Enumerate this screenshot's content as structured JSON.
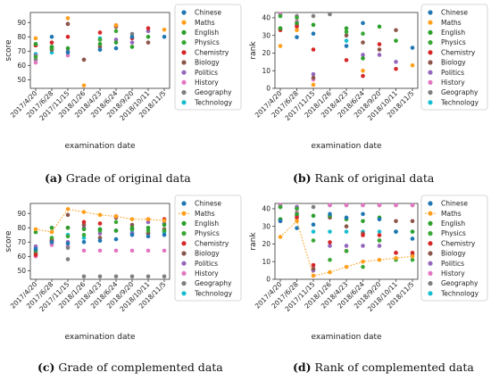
{
  "colors": {
    "Chinese": "#1f77b4",
    "Maths": "#ff9f1c",
    "English": "#2ca02c",
    "Physics": "#3aa836",
    "Chemistry": "#d62728",
    "Biology": "#8c564b",
    "Politics": "#9467bd",
    "History": "#e377c2",
    "Geography": "#7f7f7f",
    "Technology": "#17becf"
  },
  "legend_order": [
    "Chinese",
    "Maths",
    "English",
    "Physics",
    "Chemistry",
    "Biology",
    "Politics",
    "History",
    "Geography",
    "Technology"
  ],
  "chart_data": [
    {
      "type": "scatter",
      "xlabel": "examination date",
      "ylabel": "score",
      "ylim": [
        44,
        97
      ],
      "yticks": [
        50,
        60,
        70,
        80,
        90
      ],
      "categories": [
        "2017/4/20",
        "2017/6/28",
        "2017/11/15",
        "2018/1/26",
        "2018/4/23",
        "2018/6/24",
        "2018/9/20",
        "2018/10/11",
        "2018/11/5"
      ],
      "legend_position": "right",
      "caption_letter": "(a)",
      "caption_text": " Grade of original data",
      "series": [
        {
          "name": "Chinese",
          "values": [
            null,
            80,
            69,
            null,
            71,
            72,
            80,
            null,
            80
          ]
        },
        {
          "name": "Maths",
          "values": [
            79,
            null,
            93,
            null,
            null,
            88,
            null,
            null,
            85
          ]
        },
        {
          "name": "English",
          "values": [
            75,
            73,
            72,
            null,
            75,
            76,
            73,
            80,
            null
          ]
        },
        {
          "name": "Physics",
          "values": [
            66,
            72,
            null,
            null,
            78,
            84,
            null,
            null,
            null
          ]
        },
        {
          "name": "Chemistry",
          "values": [
            74,
            76,
            80,
            null,
            83,
            88,
            79,
            86,
            null
          ]
        },
        {
          "name": "Biology",
          "values": [
            74,
            71,
            89,
            64,
            73,
            87,
            null,
            76,
            null
          ]
        },
        {
          "name": "Politics",
          "values": [
            67,
            null,
            70,
            null,
            null,
            78,
            76,
            84,
            null
          ]
        },
        {
          "name": "History",
          "values": [
            62,
            null,
            67,
            null,
            null,
            null,
            null,
            null,
            null
          ]
        },
        {
          "name": "Geography",
          "values": [
            64,
            73,
            89,
            64,
            null,
            null,
            82,
            null,
            null
          ]
        },
        {
          "name": "Technology",
          "values": [
            68,
            69,
            null,
            null,
            79,
            null,
            null,
            null,
            null
          ]
        }
      ],
      "extra_points": [
        {
          "series": "Maths",
          "x": "2018/1/26",
          "y": 46
        }
      ]
    },
    {
      "type": "scatter",
      "xlabel": "examination date",
      "ylabel": "rank",
      "ylim": [
        0,
        43
      ],
      "yticks": [
        0,
        10,
        20,
        30,
        40
      ],
      "categories": [
        "2017/4/20",
        "2017/6/28",
        "2017/11/15",
        "2018/1/26",
        "2018/4/23",
        "2018/6/24",
        "2018/9/20",
        "2018/10/11",
        "2018/11/5"
      ],
      "legend_position": "right",
      "caption_letter": "(b)",
      "caption_text": " Rank of original data",
      "series": [
        {
          "name": "Chinese",
          "values": [
            null,
            29,
            31,
            null,
            24,
            37,
            null,
            null,
            23
          ]
        },
        {
          "name": "Maths",
          "values": [
            24,
            33,
            2,
            null,
            null,
            10,
            null,
            null,
            13
          ]
        },
        {
          "name": "English",
          "values": [
            34,
            37,
            36,
            null,
            34,
            17,
            35,
            27,
            null
          ]
        },
        {
          "name": "Physics",
          "values": [
            41,
            40,
            null,
            null,
            32,
            31,
            null,
            null,
            null
          ]
        },
        {
          "name": "Chemistry",
          "values": [
            33,
            35,
            22,
            null,
            16,
            7,
            25,
            11,
            null
          ]
        },
        {
          "name": "Biology",
          "values": [
            34,
            36,
            6,
            null,
            30,
            26,
            22,
            33,
            null
          ]
        },
        {
          "name": "Politics",
          "values": [
            null,
            null,
            8,
            null,
            null,
            19,
            19,
            15,
            null
          ]
        },
        {
          "name": "History",
          "values": [
            42,
            38,
            5,
            null,
            null,
            null,
            null,
            null,
            null
          ]
        },
        {
          "name": "Geography",
          "values": [
            42,
            41,
            41,
            42,
            null,
            null,
            null,
            null,
            null
          ]
        },
        {
          "name": "Technology",
          "values": [
            41,
            null,
            null,
            null,
            27,
            null,
            null,
            null,
            null
          ]
        }
      ],
      "extra_points": []
    },
    {
      "type": "scatter",
      "xlabel": "examination date",
      "ylabel": "score",
      "ylim": [
        44,
        97
      ],
      "yticks": [
        50,
        60,
        70,
        80,
        90
      ],
      "categories": [
        "2017/4/20",
        "2017/6/28",
        "2017/11/15",
        "2018/1/26",
        "2018/4/23",
        "2018/6/24",
        "2018/9/20",
        "2018/10/11",
        "2018/11/5"
      ],
      "legend_position": "right",
      "caption_letter": "(c)",
      "caption_text": " Grade of complemented data",
      "line_series": "Maths",
      "series": [
        {
          "name": "Chinese",
          "values": [
            65,
            70,
            69,
            70,
            71,
            72,
            75,
            74,
            75
          ]
        },
        {
          "name": "Maths",
          "values": [
            79,
            77,
            93,
            91,
            89,
            88,
            86,
            86,
            85
          ]
        },
        {
          "name": "English",
          "values": [
            77,
            80,
            80,
            79,
            79,
            78,
            80,
            80,
            82
          ]
        },
        {
          "name": "Physics",
          "values": [
            64,
            73,
            74,
            75,
            78,
            84,
            79,
            78,
            78
          ]
        },
        {
          "name": "Chemistry",
          "values": [
            61,
            71,
            80,
            84,
            83,
            88,
            79,
            86,
            86
          ]
        },
        {
          "name": "Biology",
          "values": [
            63,
            70,
            89,
            82,
            73,
            87,
            82,
            76,
            79
          ]
        },
        {
          "name": "Politics",
          "values": [
            67,
            71,
            70,
            80,
            76,
            78,
            76,
            84,
            83
          ]
        },
        {
          "name": "History",
          "values": [
            60,
            68,
            67,
            64,
            64,
            64,
            64,
            64,
            64
          ]
        },
        {
          "name": "Geography",
          "values": [
            62,
            72,
            58,
            46,
            46,
            46,
            46,
            46,
            46
          ]
        },
        {
          "name": "Technology",
          "values": [
            66,
            69,
            75,
            73,
            79,
            78,
            77,
            76,
            77
          ]
        }
      ],
      "extra_points": [
        {
          "series": "Geography",
          "x": "2017/11/15",
          "y": 66
        }
      ]
    },
    {
      "type": "scatter",
      "xlabel": "examination date",
      "ylabel": "rank",
      "ylim": [
        0,
        43
      ],
      "yticks": [
        0,
        10,
        20,
        30,
        40
      ],
      "categories": [
        "2017/4/20",
        "2017/6/28",
        "2017/11/15",
        "2018/1/26",
        "2018/4/23",
        "2018/6/24",
        "2018/9/20",
        "2018/10/11",
        "2018/11/5"
      ],
      "legend_position": "right",
      "caption_letter": "(d)",
      "caption_text": " Rank of complemented data",
      "line_series": "Maths",
      "series": [
        {
          "name": "Chinese",
          "values": [
            33,
            29,
            31,
            37,
            35,
            37,
            34,
            27,
            23
          ]
        },
        {
          "name": "Maths",
          "values": [
            24,
            33,
            2,
            4,
            7,
            10,
            11,
            12,
            13
          ]
        },
        {
          "name": "English",
          "values": [
            34,
            37,
            36,
            36,
            34,
            33,
            35,
            27,
            27
          ]
        },
        {
          "name": "Physics",
          "values": [
            41,
            40,
            22,
            11,
            16,
            7,
            22,
            11,
            11
          ]
        },
        {
          "name": "Chemistry",
          "values": [
            33,
            35,
            8,
            21,
            16,
            25,
            25,
            15,
            15
          ]
        },
        {
          "name": "Biology",
          "values": [
            34,
            36,
            6,
            35,
            30,
            26,
            22,
            33,
            33
          ]
        },
        {
          "name": "Politics",
          "values": [
            41,
            41,
            5,
            19,
            19,
            19,
            19,
            15,
            14
          ]
        },
        {
          "name": "History",
          "values": [
            42,
            38,
            8,
            42,
            42,
            42,
            42,
            42,
            42
          ]
        },
        {
          "name": "Geography",
          "values": [
            42,
            41,
            41,
            42,
            42,
            42,
            42,
            42,
            42
          ]
        },
        {
          "name": "Technology",
          "values": [
            41,
            40,
            27,
            27,
            27,
            27,
            27,
            27,
            27
          ]
        }
      ],
      "extra_points": []
    }
  ]
}
